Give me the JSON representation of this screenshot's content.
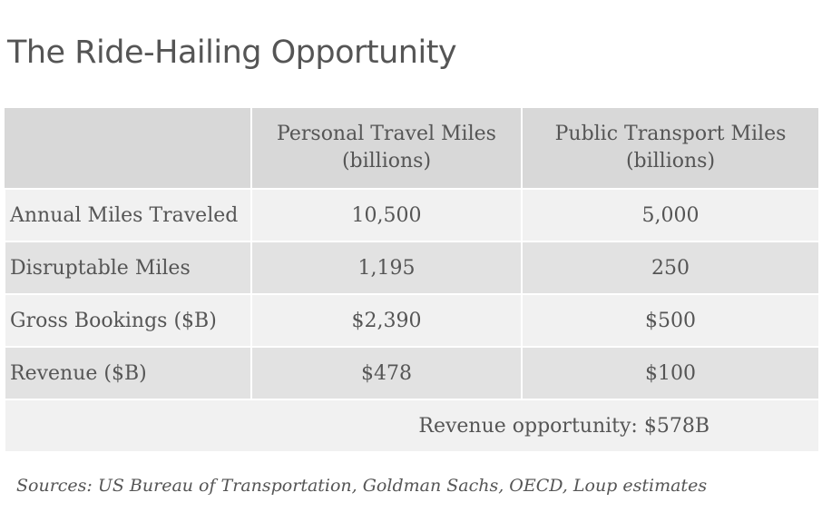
{
  "title": "The Ride-Hailing Opportunity",
  "chart_data": {
    "type": "table",
    "columns": [
      {
        "line1": "",
        "line2": ""
      },
      {
        "line1": "Personal Travel Miles",
        "line2": "(billions)"
      },
      {
        "line1": "Public Transport Miles",
        "line2": "(billions)"
      }
    ],
    "rows": [
      {
        "label": "Annual Miles Traveled",
        "personal": "10,500",
        "public": "5,000"
      },
      {
        "label": "Disruptable Miles",
        "personal": "1,195",
        "public": "250"
      },
      {
        "label": "Gross Bookings ($B)",
        "personal": "$2,390",
        "public": "$500"
      },
      {
        "label": "Revenue ($B)",
        "personal": "$478",
        "public": "$100"
      }
    ],
    "footer": "Revenue opportunity: $578B"
  },
  "sources": "Sources: US Bureau of Transportation, Goldman Sachs,  OECD, Loup estimates",
  "colors": {
    "text": "#555555",
    "header_bg": "#d8d8d8",
    "row_light": "#f1f1f1",
    "row_dark": "#e2e2e2"
  }
}
